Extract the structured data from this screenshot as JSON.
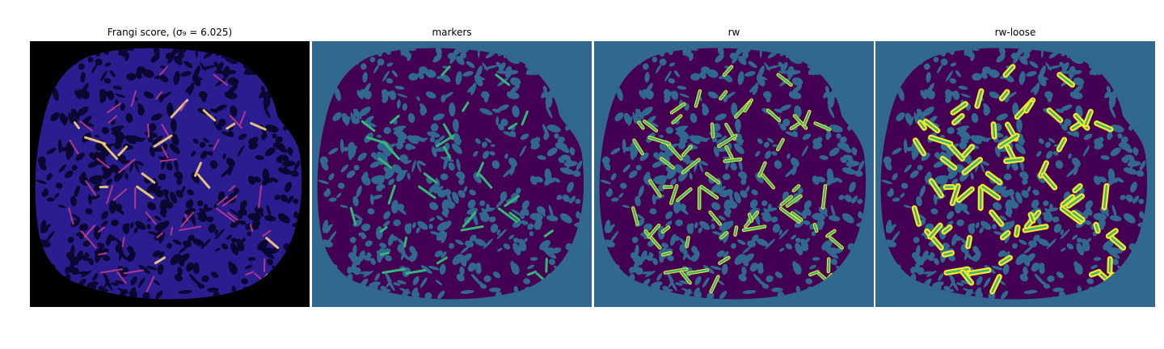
{
  "panels": [
    {
      "id": "frangi",
      "title": "Frangi score, (σ₉ = 6.025)",
      "colormap": "magma"
    },
    {
      "id": "markers",
      "title": "markers",
      "colormap": "viridis"
    },
    {
      "id": "rw",
      "title": "rw",
      "colormap": "viridis"
    },
    {
      "id": "rw-loose",
      "title": "rw-loose",
      "colormap": "viridis"
    }
  ],
  "colors": {
    "magma_background": "#000000",
    "magma_tissue": "#2a1d8f",
    "magma_pore": "#0b0730",
    "magma_vessel": "#c13a8e",
    "magma_vessel_bright": "#fcd17a",
    "viridis_background": "#31688e",
    "viridis_tissue": "#440154",
    "viridis_marker": "#35b779",
    "viridis_vessel": "#fde725"
  }
}
